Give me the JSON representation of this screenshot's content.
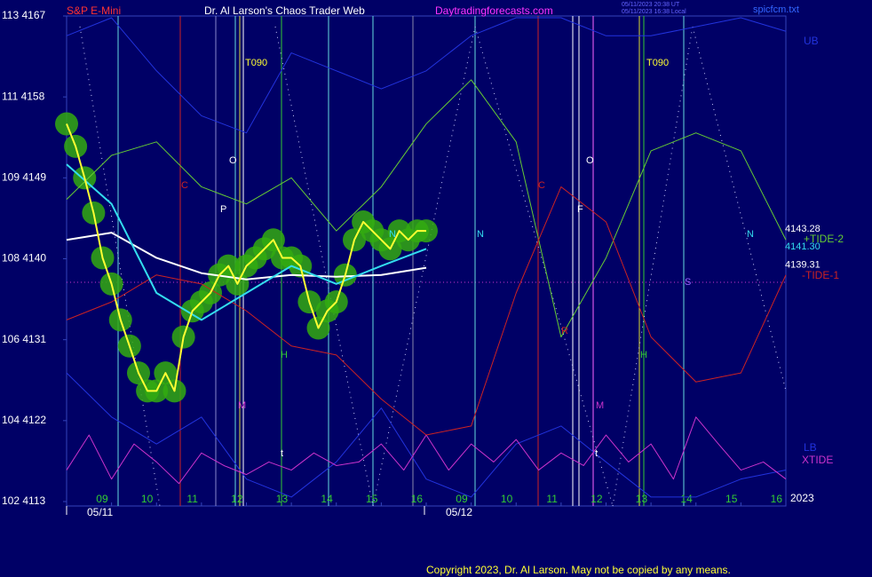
{
  "chart_data": {
    "type": "line",
    "title": "Dr. Al Larson's Chaos Trader Web",
    "symbol": "S&P E-Mini",
    "site": "Daytradingforecasts.com",
    "timestamps": [
      "05/11/2023 20:38 UT",
      "05/11/2023 16:38 Local"
    ],
    "file": "spicfcm.txt",
    "copyright": "Copyright 2023, Dr. Al Larson. May not be copied by any means.",
    "dates": [
      "05/11",
      "05/12"
    ],
    "year": "2023",
    "annotations": [
      "T090",
      "O",
      "P",
      "C",
      "N",
      "H",
      "M",
      "t",
      "C",
      "O",
      "F",
      "N",
      "R",
      "H",
      "M",
      "S",
      "T090",
      "N",
      "t"
    ],
    "xlim": [
      0,
      16
    ],
    "xticks": [
      {
        "value": 1,
        "label": "09"
      },
      {
        "value": 2,
        "label": "10"
      },
      {
        "value": 3,
        "label": "11"
      },
      {
        "value": 4,
        "label": "12"
      },
      {
        "value": 5,
        "label": "13"
      },
      {
        "value": 6,
        "label": "14"
      },
      {
        "value": 7,
        "label": "15"
      },
      {
        "value": 8,
        "label": "16"
      },
      {
        "value": 9,
        "label": "09"
      },
      {
        "value": 10,
        "label": "10"
      },
      {
        "value": 11,
        "label": "11"
      },
      {
        "value": 12,
        "label": "12"
      },
      {
        "value": 13,
        "label": "13"
      },
      {
        "value": 14,
        "label": "14"
      },
      {
        "value": 15,
        "label": "15"
      },
      {
        "value": 16,
        "label": "16"
      }
    ],
    "ylim": [
      4113,
      4167
    ],
    "yticks": [
      {
        "value": 4167,
        "label": "113 4167"
      },
      {
        "value": 4158,
        "label": "111 4158"
      },
      {
        "value": 4149,
        "label": "109 4149"
      },
      {
        "value": 4140,
        "label": "108 4140"
      },
      {
        "value": 4131,
        "label": "106 4131"
      },
      {
        "value": 4122,
        "label": "104 4122"
      },
      {
        "value": 4113,
        "label": "102 4113"
      }
    ],
    "side_values": [
      {
        "value": 4143.28,
        "label": "4143.28"
      },
      {
        "value": 4141.3,
        "label": "4141.30"
      },
      {
        "value": 4139.31,
        "label": "4139.31"
      }
    ],
    "series": [
      {
        "name": "UB",
        "color": "#2233dd",
        "x": [
          0,
          1,
          2,
          3,
          4,
          5,
          6,
          7,
          8,
          9,
          10,
          11,
          12,
          13,
          14,
          15,
          16
        ],
        "values": [
          4164.8,
          4166.8,
          4160.9,
          4155.9,
          4154.0,
          4162.9,
          4160.9,
          4158.9,
          4160.9,
          4164.8,
          4166.8,
          4166.8,
          4164.8,
          4164.8,
          4165.8,
          4166.8,
          4165.3
        ]
      },
      {
        "name": "LB",
        "color": "#2233dd",
        "x": [
          0,
          1,
          2,
          3,
          4,
          5,
          6,
          7,
          8,
          9,
          10,
          11,
          12,
          13,
          14,
          15,
          16
        ],
        "values": [
          4127.3,
          4122.4,
          4119.4,
          4122.4,
          4115.5,
          4113.5,
          4117.4,
          4123.4,
          4115.5,
          4113.5,
          4119.4,
          4121.4,
          4117.4,
          4113.5,
          4113.5,
          4115.5,
          4116.5
        ]
      },
      {
        "name": "XTIDE",
        "color": "#cc33cc",
        "x": [
          0,
          0.5,
          1,
          1.5,
          2,
          2.5,
          3,
          3.5,
          4,
          4.5,
          5,
          5.5,
          6,
          6.5,
          7,
          7.5,
          8,
          8.5,
          9,
          9.5,
          10,
          10.5,
          11,
          11.5,
          12,
          12.5,
          13,
          13.5,
          14,
          14.5,
          15,
          15.5,
          16
        ],
        "values": [
          4116.5,
          4120.4,
          4115.5,
          4119.4,
          4117.4,
          4115.0,
          4118.4,
          4117.0,
          4116.0,
          4117.4,
          4116.5,
          4118.4,
          4117.0,
          4117.4,
          4119.4,
          4116.5,
          4120.4,
          4116.5,
          4119.4,
          4117.4,
          4119.9,
          4116.5,
          4118.4,
          4117.0,
          4120.4,
          4117.4,
          4119.4,
          4115.5,
          4122.4,
          4119.4,
          4116.5,
          4117.4,
          4115.5
        ]
      },
      {
        "name": "+TIDE-2",
        "color": "#66cc33",
        "x": [
          0,
          1,
          2,
          3,
          4,
          5,
          6,
          7,
          8,
          9,
          10,
          11,
          12,
          13,
          14,
          15,
          16
        ],
        "values": [
          4146.6,
          4151.5,
          4153.0,
          4148.0,
          4146.1,
          4149.0,
          4143.1,
          4148.0,
          4155.0,
          4159.9,
          4153.0,
          4131.3,
          4140.1,
          4152.0,
          4154.0,
          4152.0,
          4142.1
        ]
      },
      {
        "name": "-TIDE-1",
        "color": "#cc2222",
        "x": [
          0,
          1,
          2,
          3,
          4,
          5,
          6,
          7,
          8,
          9,
          10,
          11,
          12,
          13,
          14,
          15,
          16
        ],
        "values": [
          4133.2,
          4135.2,
          4138.2,
          4137.2,
          4134.2,
          4130.3,
          4129.3,
          4124.4,
          4120.4,
          4121.4,
          4136.2,
          4148.0,
          4144.1,
          4131.3,
          4126.3,
          4127.3,
          4138.2
        ]
      },
      {
        "color": "#ffffff",
        "x": [
          0,
          1,
          2,
          3,
          4,
          5,
          6,
          7,
          8
        ],
        "values": [
          4142.1,
          4142.9,
          4140.1,
          4138.4,
          4137.7,
          4138.2,
          4138.0,
          4138.2,
          4139.0
        ]
      },
      {
        "color": "#33ddee",
        "x": [
          0,
          1,
          2,
          3,
          4,
          5,
          6,
          7,
          8
        ],
        "values": [
          4150.5,
          4146.1,
          4136.2,
          4133.2,
          4136.2,
          4139.2,
          4137.2,
          4139.2,
          4141.1
        ]
      },
      {
        "color": "#ffff33",
        "x": [
          0,
          0.2,
          0.4,
          0.6,
          0.8,
          1,
          1.2,
          1.4,
          1.6,
          1.8,
          2,
          2.2,
          2.4,
          2.6,
          2.8,
          3,
          3.2,
          3.4,
          3.6,
          3.8,
          4,
          4.2,
          4.4,
          4.6,
          4.8,
          5,
          5.2,
          5.4,
          5.6,
          5.8,
          6,
          6.2,
          6.4,
          6.6,
          6.8,
          7,
          7.2,
          7.4,
          7.6,
          7.8,
          8
        ],
        "values": [
          4155.0,
          4152.5,
          4149.0,
          4145.1,
          4140.1,
          4137.2,
          4133.2,
          4130.3,
          4127.3,
          4125.3,
          4125.3,
          4127.3,
          4125.3,
          4131.3,
          4134.2,
          4135.2,
          4136.2,
          4138.2,
          4139.2,
          4137.2,
          4139.2,
          4140.1,
          4141.1,
          4142.1,
          4140.1,
          4140.1,
          4139.2,
          4135.2,
          4132.3,
          4134.2,
          4135.2,
          4138.2,
          4142.1,
          4144.1,
          4143.1,
          4142.1,
          4141.1,
          4143.1,
          4142.1,
          4143.1,
          4143.1
        ]
      }
    ]
  }
}
